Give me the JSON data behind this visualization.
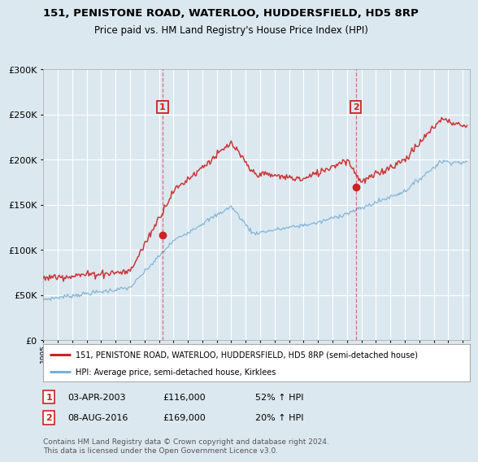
{
  "title1": "151, PENISTONE ROAD, WATERLOO, HUDDERSFIELD, HD5 8RP",
  "title2": "Price paid vs. HM Land Registry's House Price Index (HPI)",
  "legend_line1": "151, PENISTONE ROAD, WATERLOO, HUDDERSFIELD, HD5 8RP (semi-detached house)",
  "legend_line2": "HPI: Average price, semi-detached house, Kirklees",
  "footnote": "Contains HM Land Registry data © Crown copyright and database right 2024.\nThis data is licensed under the Open Government Licence v3.0.",
  "transaction1_date": "03-APR-2003",
  "transaction1_price": "£116,000",
  "transaction1_hpi": "52% ↑ HPI",
  "transaction1_year": 2003.25,
  "transaction1_value": 116000,
  "transaction2_date": "08-AUG-2016",
  "transaction2_price": "£169,000",
  "transaction2_hpi": "20% ↑ HPI",
  "transaction2_year": 2016.6,
  "transaction2_value": 169000,
  "hpi_color": "#7ab0d4",
  "price_color": "#cc2222",
  "vline_color": "#cc2222",
  "background_color": "#dce8f0",
  "ylim": [
    0,
    300000
  ],
  "xlim_start": 1995.0,
  "xlim_end": 2024.5
}
